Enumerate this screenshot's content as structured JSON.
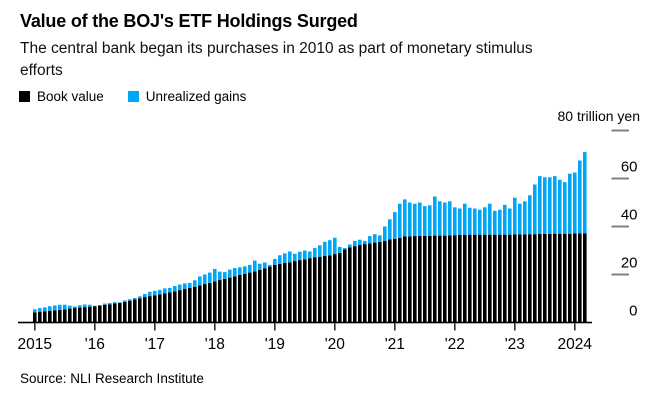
{
  "header": {
    "title": "Value of the BOJ's ETF Holdings Surged",
    "subtitle": "The central bank began its purchases in 2010 as part of monetary stimulus\nefforts"
  },
  "legend": {
    "items": [
      {
        "label": "Book value",
        "color": "#000000"
      },
      {
        "label": "Unrealized gains",
        "color": "#00a7f6"
      }
    ]
  },
  "axis_unit_label": "80 trillion yen",
  "source": "Source: NLI Research Institute",
  "colors": {
    "book_value": "#000000",
    "unrealized_gains": "#00a7f6",
    "axis_dash": "#808080",
    "axis_line": "#000000",
    "tick_mark": "#222222",
    "tick_label": "#000000"
  },
  "chart_data": {
    "type": "bar",
    "stacked": true,
    "unit": "trillion yen",
    "frequency": "monthly",
    "x_start": "2015-01",
    "x_end": "2024-03",
    "x_tick_labels": [
      "2015",
      "'16",
      "'17",
      "'18",
      "'19",
      "'20",
      "'21",
      "'22",
      "'23",
      "2024"
    ],
    "x_tick_month_indices": [
      0,
      12,
      24,
      36,
      48,
      60,
      72,
      84,
      96,
      108
    ],
    "ylim": [
      0,
      80
    ],
    "y_ticks": [
      0,
      20,
      40,
      60,
      80
    ],
    "y_dash_ticks": [
      80,
      60,
      40,
      20
    ],
    "y_label_ticks": [
      60,
      40,
      20,
      0
    ],
    "grid": false,
    "legend_position": "top-left",
    "series": [
      {
        "name": "Book value",
        "color": "#000000",
        "values": [
          4.2,
          4.5,
          4.7,
          4.9,
          5.1,
          5.3,
          5.5,
          5.8,
          6.0,
          6.2,
          6.4,
          6.6,
          6.8,
          7.1,
          7.4,
          7.6,
          7.9,
          8.2,
          8.6,
          9.1,
          9.6,
          10.1,
          10.6,
          11.0,
          11.3,
          11.7,
          12.2,
          12.6,
          13.0,
          13.5,
          14.0,
          14.4,
          14.9,
          15.4,
          16.0,
          16.5,
          17.1,
          17.7,
          18.2,
          18.7,
          19.2,
          19.8,
          20.3,
          20.8,
          21.3,
          22.0,
          22.6,
          23.3,
          24.0,
          24.4,
          24.8,
          25.1,
          25.6,
          26.0,
          26.3,
          26.8,
          27.1,
          27.4,
          27.7,
          28.0,
          28.5,
          29.0,
          30.5,
          31.3,
          31.8,
          32.3,
          32.7,
          33.0,
          33.3,
          33.6,
          34.0,
          34.6,
          34.9,
          35.2,
          35.9,
          35.9,
          36.0,
          36.1,
          36.1,
          36.1,
          36.2,
          36.2,
          36.2,
          36.3,
          36.4,
          36.5,
          36.5,
          36.6,
          36.6,
          36.6,
          36.6,
          36.6,
          36.6,
          36.6,
          36.6,
          36.6,
          36.7,
          36.7,
          36.7,
          36.8,
          36.8,
          36.9,
          36.9,
          36.9,
          37.0,
          37.0,
          37.0,
          37.0,
          37.1,
          37.1,
          37.2
        ]
      },
      {
        "name": "Unrealized gains",
        "color": "#00a7f6",
        "values": [
          1.3,
          1.5,
          1.6,
          1.9,
          2.0,
          2.1,
          1.9,
          1.2,
          0.7,
          1.0,
          1.1,
          0.8,
          0.2,
          0.1,
          0.5,
          0.5,
          0.6,
          0.2,
          0.6,
          0.6,
          0.6,
          0.8,
          1.3,
          1.8,
          1.9,
          1.9,
          2.0,
          1.8,
          2.2,
          2.3,
          2.3,
          2.1,
          2.7,
          3.8,
          4.0,
          4.3,
          5.2,
          3.5,
          2.8,
          3.3,
          3.5,
          3.2,
          3.1,
          3.2,
          4.5,
          2.5,
          2.4,
          0.7,
          2.5,
          3.6,
          4.0,
          4.5,
          3.0,
          3.5,
          3.7,
          2.8,
          3.9,
          4.8,
          5.9,
          6.3,
          6.8,
          2.5,
          0.5,
          1.2,
          2.2,
          2.2,
          1.3,
          3.0,
          3.5,
          2.7,
          6.0,
          8.4,
          11.1,
          14.3,
          15.4,
          14.1,
          13.5,
          13.9,
          12.4,
          12.7,
          16.3,
          14.3,
          13.8,
          14.2,
          11.6,
          11.0,
          13.0,
          11.2,
          10.9,
          10.4,
          11.4,
          12.9,
          9.9,
          10.4,
          12.4,
          10.9,
          15.3,
          12.8,
          13.8,
          16.2,
          20.7,
          24.1,
          23.6,
          23.6,
          24.0,
          22.5,
          21.5,
          25.0,
          25.4,
          30.4,
          33.8
        ]
      }
    ]
  }
}
